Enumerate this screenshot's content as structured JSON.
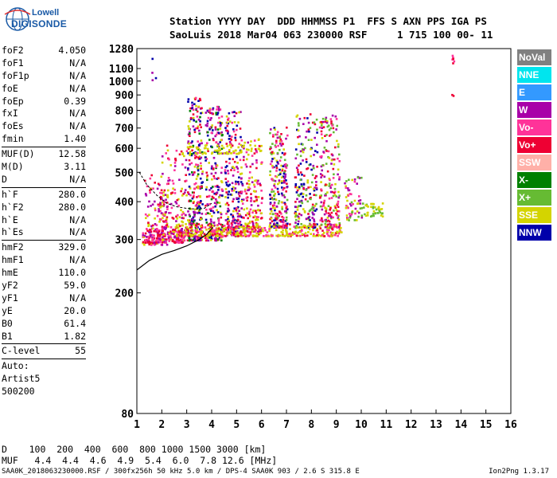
{
  "logo": {
    "line1": "Lowell",
    "line2": "DIGISONDE"
  },
  "header": {
    "line1": "Station YYYY DAY  DDD HHMMSS P1  FFS S AXN PPS IGA PS",
    "line2": "SaoLuis 2018 Mar04 063 230000 RSF     1 715 100 00- 11"
  },
  "params": [
    {
      "type": "row",
      "name": "foF2",
      "value": "4.050"
    },
    {
      "type": "row",
      "name": "foF1",
      "value": "N/A"
    },
    {
      "type": "row",
      "name": "foF1p",
      "value": "N/A"
    },
    {
      "type": "row",
      "name": "foE",
      "value": "N/A"
    },
    {
      "type": "row",
      "name": "foEp",
      "value": "0.39"
    },
    {
      "type": "row",
      "name": "fxI",
      "value": "N/A"
    },
    {
      "type": "row",
      "name": "foEs",
      "value": "N/A"
    },
    {
      "type": "row",
      "name": "fmin",
      "value": "1.40"
    },
    {
      "type": "sep"
    },
    {
      "type": "row",
      "name": "MUF(D)",
      "value": "12.58"
    },
    {
      "type": "row",
      "name": "M(D)",
      "value": "3.11"
    },
    {
      "type": "row",
      "name": "D",
      "value": "N/A"
    },
    {
      "type": "sep"
    },
    {
      "type": "row",
      "name": "h`F",
      "value": "280.0"
    },
    {
      "type": "row",
      "name": "h`F2",
      "value": "280.0"
    },
    {
      "type": "row",
      "name": "h`E",
      "value": "N/A"
    },
    {
      "type": "row",
      "name": "h`Es",
      "value": "N/A"
    },
    {
      "type": "sep"
    },
    {
      "type": "row",
      "name": "hmF2",
      "value": "329.0"
    },
    {
      "type": "row",
      "name": "hmF1",
      "value": "N/A"
    },
    {
      "type": "row",
      "name": "hmE",
      "value": "110.0"
    },
    {
      "type": "row",
      "name": "yF2",
      "value": "59.0"
    },
    {
      "type": "row",
      "name": "yF1",
      "value": "N/A"
    },
    {
      "type": "row",
      "name": "yE",
      "value": "20.0"
    },
    {
      "type": "row",
      "name": "B0",
      "value": "61.4"
    },
    {
      "type": "row",
      "name": "B1",
      "value": "1.82"
    },
    {
      "type": "sep"
    },
    {
      "type": "row",
      "name": "C-level",
      "value": "55"
    },
    {
      "type": "sep"
    },
    {
      "type": "plain",
      "text": "Auto:"
    },
    {
      "type": "plain",
      "text": "Artist5"
    },
    {
      "type": "plain",
      "text": "500200"
    }
  ],
  "legend": [
    {
      "label": "NoVal",
      "color": "#808080"
    },
    {
      "label": "NNE",
      "color": "#00e5ee"
    },
    {
      "label": "E",
      "color": "#3399ff"
    },
    {
      "label": "W",
      "color": "#a800a8"
    },
    {
      "label": "Vo-",
      "color": "#ff3399"
    },
    {
      "label": "Vo+",
      "color": "#ee0033"
    },
    {
      "label": "SSW",
      "color": "#ffb0a8"
    },
    {
      "label": "X-",
      "color": "#008000"
    },
    {
      "label": "X+",
      "color": "#66bb33"
    },
    {
      "label": "SSE",
      "color": "#d4d400"
    },
    {
      "label": "NNW",
      "color": "#0000aa"
    }
  ],
  "footer": {
    "d_row": "D    100  200  400  600  800 1000 1500 3000 [km]",
    "muf_row": "MUF   4.4  4.4  4.6  4.9  5.4  6.0  7.8 12.6 [MHz]",
    "source": "SAA0K_2018063230000.RSF / 300fx256h 50 kHz 5.0 km / DPS-4 SAA0K 903 / 2.6 S 315.8 E",
    "version": "Ion2Png 1.3.17"
  },
  "chart_data": {
    "type": "scatter",
    "xlabel": "",
    "ylabel": "",
    "xlim": [
      1,
      16
    ],
    "ylim": [
      80,
      1280
    ],
    "y_scale": "log",
    "x_ticks": [
      1,
      2,
      3,
      4,
      5,
      6,
      7,
      8,
      9,
      10,
      11,
      12,
      13,
      14,
      15,
      16
    ],
    "y_ticks": [
      80,
      200,
      300,
      400,
      500,
      600,
      700,
      800,
      900,
      1000,
      1100,
      1280
    ],
    "grid": false,
    "legend_position": "right",
    "profile_curve": {
      "x": [
        1.0,
        1.5,
        2.0,
        2.5,
        3.0,
        3.5,
        3.8,
        4.05
      ],
      "y": [
        238,
        256,
        268,
        276,
        286,
        300,
        312,
        329
      ]
    },
    "trace_curve": {
      "x": [
        1.1,
        1.4,
        1.8,
        2.2,
        2.6,
        3.0,
        3.4,
        3.7,
        4.0
      ],
      "y": [
        500,
        455,
        420,
        395,
        385,
        380,
        378,
        380,
        395
      ]
    },
    "clusters": [
      {
        "x": [
          1.2,
          2.2
        ],
        "y": [
          290,
          500
        ],
        "n": 130,
        "colors": [
          "#ee0033",
          "#a800a8",
          "#ff3399",
          "#d4d400"
        ]
      },
      {
        "x": [
          1.3,
          2.9
        ],
        "y": [
          295,
          330
        ],
        "n": 140,
        "colors": [
          "#ee0033",
          "#ff3399",
          "#a800a8"
        ]
      },
      {
        "x": [
          1.9,
          3.0
        ],
        "y": [
          300,
          620
        ],
        "n": 140,
        "colors": [
          "#d4d400",
          "#a800a8",
          "#ff3399",
          "#ee0033"
        ]
      },
      {
        "x": [
          3.0,
          3.6
        ],
        "y": [
          300,
          900
        ],
        "n": 280,
        "colors": [
          "#a800a8",
          "#ee0033",
          "#d4d400",
          "#ff3399",
          "#0000aa",
          "#008000"
        ]
      },
      {
        "x": [
          3.7,
          4.4
        ],
        "y": [
          300,
          850
        ],
        "n": 260,
        "colors": [
          "#a800a8",
          "#ee0033",
          "#d4d400",
          "#ff3399",
          "#008000",
          "#0000aa"
        ]
      },
      {
        "x": [
          4.5,
          5.2
        ],
        "y": [
          310,
          800
        ],
        "n": 240,
        "colors": [
          "#a800a8",
          "#ee0033",
          "#d4d400",
          "#ff3399",
          "#0000aa"
        ]
      },
      {
        "x": [
          5.2,
          6.0
        ],
        "y": [
          320,
          650
        ],
        "n": 160,
        "colors": [
          "#d4d400",
          "#a800a8",
          "#ee0033",
          "#ff3399"
        ]
      },
      {
        "x": [
          6.3,
          7.0
        ],
        "y": [
          330,
          720
        ],
        "n": 240,
        "colors": [
          "#a800a8",
          "#ee0033",
          "#d4d400",
          "#66bb33",
          "#ff3399",
          "#0000aa"
        ]
      },
      {
        "x": [
          7.3,
          8.2
        ],
        "y": [
          330,
          800
        ],
        "n": 200,
        "colors": [
          "#a800a8",
          "#ee0033",
          "#d4d400",
          "#66bb33",
          "#0000aa"
        ]
      },
      {
        "x": [
          8.3,
          9.1
        ],
        "y": [
          330,
          780
        ],
        "n": 200,
        "colors": [
          "#a800a8",
          "#ee0033",
          "#d4d400",
          "#ff3399",
          "#66bb33"
        ]
      },
      {
        "x": [
          2.5,
          9.2
        ],
        "y": [
          310,
          340
        ],
        "n": 380,
        "colors": [
          "#d4d400",
          "#d4d400",
          "#ee0033",
          "#ff3399"
        ]
      },
      {
        "x": [
          9.3,
          10.0
        ],
        "y": [
          350,
          500
        ],
        "n": 60,
        "colors": [
          "#d4d400",
          "#66bb33",
          "#a800a8",
          "#ff3399"
        ]
      },
      {
        "x": [
          10.0,
          11.0
        ],
        "y": [
          360,
          400
        ],
        "n": 40,
        "colors": [
          "#d4d400",
          "#66bb33"
        ]
      },
      {
        "x": [
          3.0,
          6.0
        ],
        "y": [
          580,
          620
        ],
        "n": 60,
        "colors": [
          "#d4d400",
          "#d4d400"
        ]
      },
      {
        "x": [
          13.6,
          13.7
        ],
        "y": [
          1140,
          1230
        ],
        "n": 6,
        "colors": [
          "#ee0033",
          "#ff3399"
        ]
      },
      {
        "x": [
          13.6,
          13.7
        ],
        "y": [
          900,
          910
        ],
        "n": 2,
        "colors": [
          "#ee0033"
        ]
      },
      {
        "x": [
          1.5,
          1.8
        ],
        "y": [
          1000,
          1280
        ],
        "n": 4,
        "colors": [
          "#a800a8",
          "#0000aa"
        ]
      }
    ]
  }
}
